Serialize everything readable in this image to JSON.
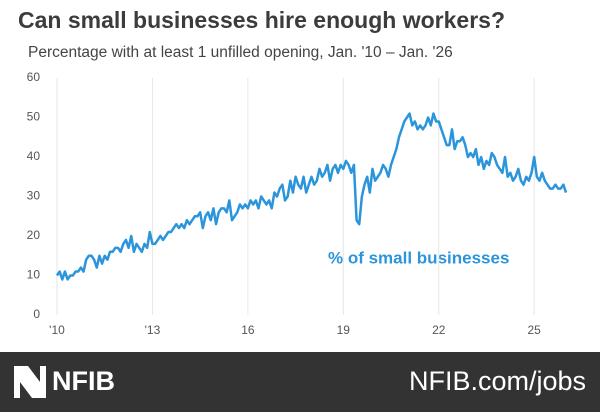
{
  "chart_data": {
    "type": "line",
    "title": "Can small businesses hire enough workers?",
    "subtitle": "Percentage with at least 1 unfilled opening, Jan. '10 –  Jan. '26",
    "annotation": "% of small businesses",
    "footer": {
      "logo": "NFIB",
      "url": "NFIB.com/jobs"
    },
    "categories": [
      "'10",
      null,
      null,
      null,
      null,
      null,
      null,
      null,
      null,
      null,
      null,
      null,
      null,
      null,
      null,
      null,
      null,
      null,
      null,
      null,
      null,
      null,
      null,
      null,
      null,
      null,
      null,
      null,
      null,
      null,
      null,
      null,
      null,
      null,
      null,
      null,
      "'13",
      null,
      null,
      null,
      null,
      null,
      null,
      null,
      null,
      null,
      null,
      null,
      null,
      null,
      null,
      null,
      null,
      null,
      null,
      null,
      null,
      null,
      null,
      null,
      null,
      null,
      null,
      null,
      null,
      null,
      null,
      null,
      null,
      null,
      null,
      null,
      "16",
      null,
      null,
      null,
      null,
      null,
      null,
      null,
      null,
      null,
      null,
      null,
      null,
      null,
      null,
      null,
      null,
      null,
      null,
      null,
      null,
      null,
      null,
      null,
      null,
      null,
      null,
      null,
      null,
      null,
      null,
      null,
      null,
      null,
      null,
      null,
      "19",
      null,
      null,
      null,
      null,
      null,
      null,
      null,
      null,
      null,
      null,
      null,
      null,
      null,
      null,
      null,
      null,
      null,
      null,
      null,
      null,
      null,
      null,
      null,
      null,
      null,
      null,
      null,
      null,
      null,
      null,
      null,
      null,
      null,
      null,
      null,
      "22",
      null,
      null,
      null,
      null,
      null,
      null,
      null,
      null,
      null,
      null,
      null,
      null,
      null,
      null,
      null,
      null,
      null,
      null,
      null,
      null,
      null,
      null,
      null,
      null,
      null,
      null,
      null,
      null,
      null,
      null,
      null,
      null,
      null,
      null,
      null,
      "25",
      null,
      null,
      null,
      null,
      null,
      null,
      null,
      null,
      null,
      null,
      null,
      null
    ],
    "series": [
      {
        "name": "% of small businesses",
        "color": "#2b95dc",
        "values": [
          10,
          11,
          9,
          11,
          9,
          10,
          10,
          11,
          11,
          12,
          11,
          14,
          15,
          15,
          14,
          12,
          15,
          13,
          15,
          14,
          16,
          16,
          17,
          17,
          16,
          18,
          19,
          17,
          20,
          16,
          18,
          17,
          16,
          18,
          17,
          21,
          18,
          18,
          19,
          20,
          19,
          20,
          21,
          21,
          22,
          23,
          22,
          23,
          22,
          24,
          23,
          24,
          25,
          25,
          26,
          22,
          25,
          26,
          24,
          27,
          23,
          26,
          27,
          27,
          26,
          29,
          24,
          25,
          26,
          28,
          27,
          28,
          27,
          29,
          28,
          29,
          27,
          30,
          29,
          28,
          29,
          27,
          31,
          30,
          32,
          33,
          29,
          30,
          34,
          31,
          35,
          33,
          32,
          35,
          31,
          33,
          35,
          33,
          34,
          37,
          35,
          36,
          38,
          34,
          37,
          38,
          36,
          38,
          37,
          39,
          38,
          36,
          38,
          24,
          23,
          30,
          33,
          35,
          31,
          37,
          34,
          35,
          36,
          38,
          37,
          35,
          38,
          40,
          42,
          45,
          47,
          49,
          50,
          51,
          48,
          49,
          47,
          48,
          47,
          48,
          50,
          48,
          51,
          49,
          49,
          47,
          45,
          43,
          43,
          47,
          42,
          44,
          44,
          45,
          43,
          40,
          41,
          40,
          42,
          38,
          40,
          37,
          39,
          38,
          41,
          40,
          38,
          37,
          36,
          40,
          35,
          36,
          34,
          35,
          37,
          34,
          33,
          35,
          34,
          36,
          40,
          35,
          34,
          36,
          34,
          33,
          32,
          32,
          33,
          32,
          32,
          33,
          31
        ]
      }
    ],
    "ylim": [
      0,
      60
    ],
    "yticks": [
      0,
      10,
      20,
      30,
      40,
      50,
      60
    ],
    "grid": true
  }
}
